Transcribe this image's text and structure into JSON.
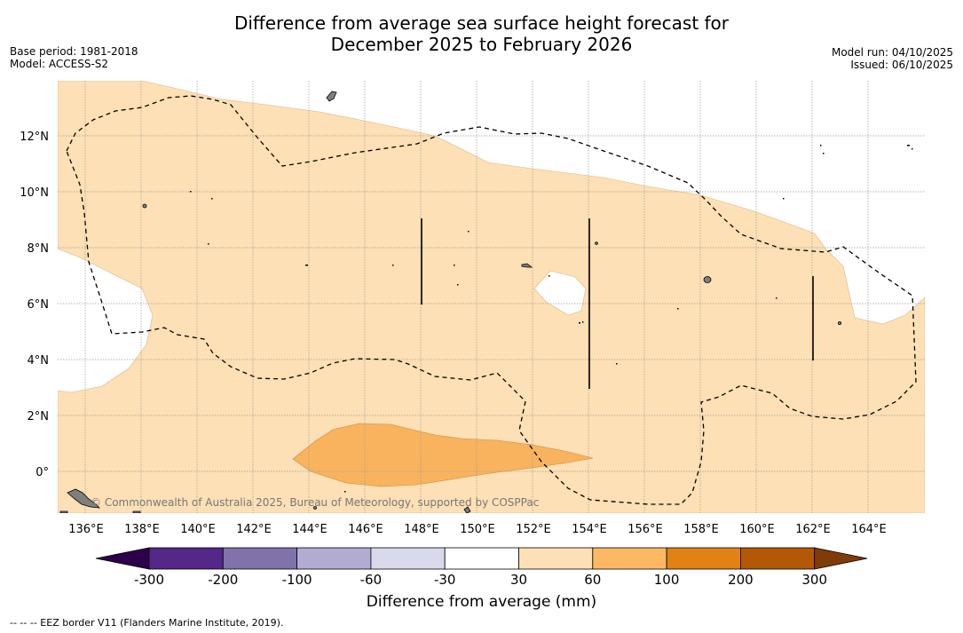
{
  "title": {
    "line1": "Difference from average sea surface height forecast for",
    "line2": "December 2025 to February 2026"
  },
  "meta_left": {
    "base_period": "Base period: 1981-2018",
    "model": "Model: ACCESS-S2"
  },
  "meta_right": {
    "model_run": "Model run: 04/10/2025",
    "issued": "Issued: 06/10/2025"
  },
  "map": {
    "lon_labels": [
      "136°E",
      "138°E",
      "140°E",
      "142°E",
      "144°E",
      "146°E",
      "148°E",
      "150°E",
      "152°E",
      "154°E",
      "156°E",
      "158°E",
      "160°E",
      "162°E",
      "164°E"
    ],
    "lat_labels": [
      "12°N",
      "10°N",
      "8°N",
      "6°N",
      "4°N",
      "2°N",
      "0°"
    ],
    "attribution": "© Commonwealth of Australia 2025, Bureau of Meteorology, supported by COSPPac",
    "colors": {
      "band_30_60": "#fde0b5",
      "band_60_100": "#f9b35e",
      "land": "#7f7f7f"
    }
  },
  "colorbar": {
    "ticks": [
      "-300",
      "-200",
      "-100",
      "-60",
      "-30",
      "30",
      "60",
      "100",
      "200",
      "300"
    ],
    "colors": [
      "#2d004b",
      "#542788",
      "#8073ac",
      "#b2abd2",
      "#d8daeb",
      "#ffffff",
      "#fee0b6",
      "#fdb863",
      "#e08214",
      "#b35806",
      "#7f3b08"
    ],
    "label": "Difference from average (mm)"
  },
  "footnote": "--  --  -- EEZ border V11 (Flanders Marine Institute, 2019)."
}
